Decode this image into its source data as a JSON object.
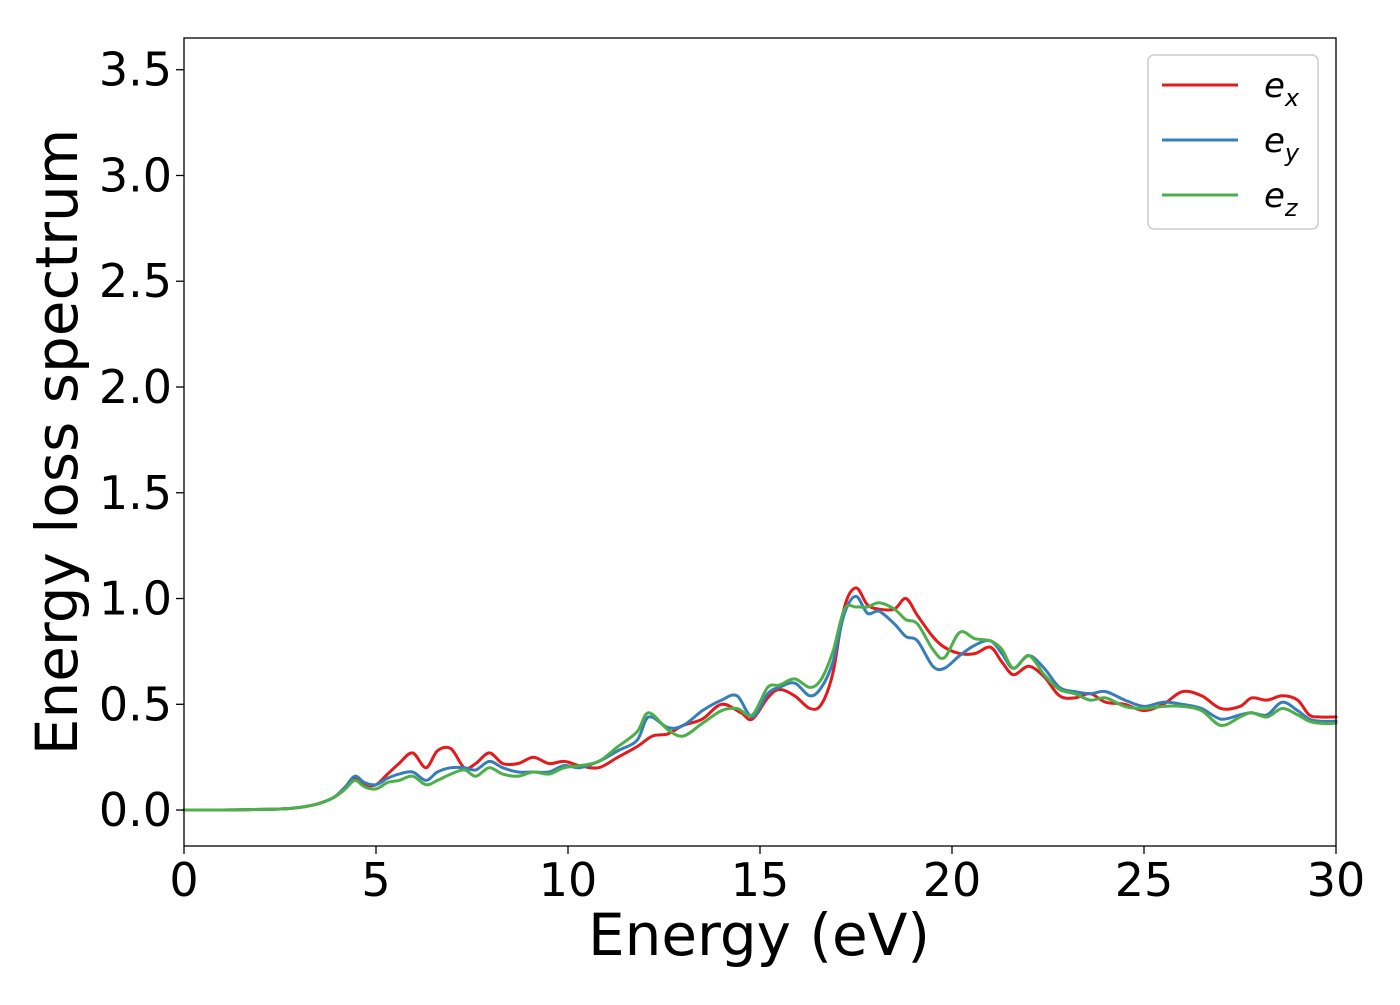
{
  "chart_data": {
    "type": "line",
    "xlabel": "Energy (eV)",
    "ylabel": "Energy loss spectrum",
    "xlim": [
      0,
      30
    ],
    "ylim": [
      -0.17,
      3.65
    ],
    "xticks": [
      0,
      5,
      10,
      15,
      20,
      25,
      30
    ],
    "xtick_labels": [
      "0",
      "5",
      "10",
      "15",
      "20",
      "25",
      "30"
    ],
    "yticks": [
      0.0,
      0.5,
      1.0,
      1.5,
      2.0,
      2.5,
      3.0,
      3.5
    ],
    "ytick_labels": [
      "0.0",
      "0.5",
      "1.0",
      "1.5",
      "2.0",
      "2.5",
      "3.0",
      "3.5"
    ],
    "grid": false,
    "legend_position": "top-right",
    "series": [
      {
        "name": "e_x",
        "legend_base": "e",
        "legend_sub": "x",
        "color": "#e41a1c",
        "x": [
          0,
          1,
          2,
          2.5,
          3,
          3.5,
          3.9,
          4.2,
          4.45,
          4.7,
          5.0,
          5.3,
          5.6,
          5.95,
          6.3,
          6.6,
          6.95,
          7.3,
          7.6,
          7.95,
          8.3,
          8.7,
          9.1,
          9.5,
          9.9,
          10.3,
          10.8,
          11.3,
          11.8,
          12.2,
          12.6,
          13.0,
          13.5,
          14.0,
          14.5,
          14.8,
          15.2,
          15.5,
          15.9,
          16.3,
          16.6,
          16.9,
          17.2,
          17.5,
          17.8,
          18.1,
          18.5,
          18.8,
          19.1,
          19.5,
          19.8,
          20.2,
          20.6,
          21.0,
          21.3,
          21.6,
          22.0,
          22.4,
          22.8,
          23.2,
          23.6,
          24.0,
          24.5,
          25.0,
          25.5,
          26.0,
          26.5,
          27.0,
          27.5,
          27.8,
          28.2,
          28.6,
          29.0,
          29.3,
          29.6,
          30.0
        ],
        "y": [
          0,
          0,
          0.003,
          0.005,
          0.012,
          0.03,
          0.06,
          0.1,
          0.15,
          0.12,
          0.12,
          0.17,
          0.22,
          0.27,
          0.2,
          0.28,
          0.29,
          0.2,
          0.22,
          0.27,
          0.22,
          0.22,
          0.25,
          0.22,
          0.23,
          0.21,
          0.2,
          0.25,
          0.3,
          0.35,
          0.36,
          0.4,
          0.43,
          0.5,
          0.46,
          0.43,
          0.53,
          0.57,
          0.54,
          0.48,
          0.5,
          0.65,
          0.96,
          1.05,
          0.97,
          0.95,
          0.95,
          1.0,
          0.92,
          0.82,
          0.77,
          0.74,
          0.74,
          0.77,
          0.7,
          0.64,
          0.68,
          0.63,
          0.54,
          0.53,
          0.55,
          0.51,
          0.5,
          0.47,
          0.5,
          0.56,
          0.54,
          0.48,
          0.49,
          0.53,
          0.52,
          0.54,
          0.52,
          0.45,
          0.44,
          0.44
        ]
      },
      {
        "name": "e_y",
        "legend_base": "e",
        "legend_sub": "y",
        "color": "#377eb8",
        "x": [
          0,
          1,
          2,
          2.5,
          3,
          3.5,
          3.9,
          4.2,
          4.45,
          4.7,
          5.0,
          5.3,
          5.6,
          5.95,
          6.3,
          6.6,
          6.95,
          7.3,
          7.6,
          7.95,
          8.3,
          8.7,
          9.1,
          9.5,
          9.9,
          10.3,
          10.8,
          11.3,
          11.8,
          12.1,
          12.6,
          13.0,
          13.5,
          14.0,
          14.4,
          14.8,
          15.2,
          15.5,
          15.9,
          16.3,
          16.6,
          16.9,
          17.2,
          17.5,
          17.8,
          18.1,
          18.5,
          18.8,
          19.1,
          19.5,
          19.8,
          20.2,
          20.6,
          21.0,
          21.3,
          21.6,
          22.0,
          22.4,
          22.8,
          23.2,
          23.6,
          24.0,
          24.5,
          25.0,
          25.5,
          26.0,
          26.5,
          27.0,
          27.5,
          27.8,
          28.2,
          28.6,
          29.0,
          29.3,
          29.6,
          30.0
        ],
        "y": [
          0,
          0,
          0.003,
          0.005,
          0.012,
          0.03,
          0.06,
          0.11,
          0.16,
          0.13,
          0.12,
          0.15,
          0.17,
          0.18,
          0.14,
          0.18,
          0.2,
          0.2,
          0.19,
          0.23,
          0.2,
          0.18,
          0.18,
          0.18,
          0.21,
          0.2,
          0.23,
          0.28,
          0.33,
          0.44,
          0.39,
          0.4,
          0.47,
          0.52,
          0.54,
          0.44,
          0.55,
          0.58,
          0.6,
          0.54,
          0.58,
          0.7,
          0.93,
          1.01,
          0.93,
          0.94,
          0.88,
          0.82,
          0.8,
          0.68,
          0.67,
          0.73,
          0.78,
          0.8,
          0.74,
          0.67,
          0.73,
          0.67,
          0.58,
          0.56,
          0.55,
          0.56,
          0.52,
          0.49,
          0.51,
          0.5,
          0.48,
          0.43,
          0.45,
          0.46,
          0.45,
          0.51,
          0.47,
          0.43,
          0.42,
          0.42
        ]
      },
      {
        "name": "e_z",
        "legend_base": "e",
        "legend_sub": "z",
        "color": "#4daf4a",
        "x": [
          0,
          1,
          2,
          2.5,
          3,
          3.5,
          3.9,
          4.2,
          4.45,
          4.7,
          5.0,
          5.3,
          5.6,
          5.95,
          6.3,
          6.6,
          6.95,
          7.3,
          7.6,
          7.95,
          8.3,
          8.7,
          9.1,
          9.5,
          9.9,
          10.3,
          10.8,
          11.3,
          11.8,
          12.1,
          12.6,
          13.0,
          13.5,
          14.0,
          14.4,
          14.8,
          15.2,
          15.5,
          15.9,
          16.3,
          16.6,
          16.9,
          17.2,
          17.5,
          17.8,
          18.1,
          18.5,
          18.8,
          19.1,
          19.5,
          19.8,
          20.2,
          20.6,
          21.0,
          21.3,
          21.6,
          22.0,
          22.4,
          22.8,
          23.2,
          23.6,
          24.0,
          24.5,
          25.0,
          25.5,
          26.0,
          26.5,
          27.0,
          27.5,
          27.8,
          28.2,
          28.6,
          29.0,
          29.3,
          29.6,
          30.0
        ],
        "y": [
          0,
          0,
          0.003,
          0.005,
          0.012,
          0.03,
          0.06,
          0.1,
          0.14,
          0.11,
          0.1,
          0.13,
          0.14,
          0.16,
          0.12,
          0.14,
          0.17,
          0.19,
          0.16,
          0.2,
          0.17,
          0.16,
          0.18,
          0.17,
          0.2,
          0.21,
          0.23,
          0.3,
          0.37,
          0.46,
          0.38,
          0.35,
          0.41,
          0.47,
          0.48,
          0.45,
          0.58,
          0.59,
          0.62,
          0.58,
          0.62,
          0.75,
          0.95,
          0.96,
          0.96,
          0.98,
          0.95,
          0.9,
          0.88,
          0.76,
          0.72,
          0.84,
          0.81,
          0.8,
          0.76,
          0.67,
          0.73,
          0.64,
          0.57,
          0.55,
          0.52,
          0.53,
          0.49,
          0.48,
          0.49,
          0.49,
          0.47,
          0.4,
          0.44,
          0.46,
          0.44,
          0.48,
          0.45,
          0.42,
          0.41,
          0.41
        ]
      }
    ]
  }
}
